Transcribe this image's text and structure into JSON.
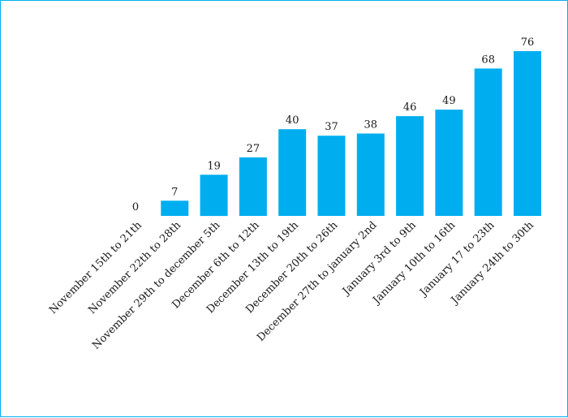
{
  "chart_data": {
    "type": "bar",
    "title": "",
    "xlabel": "",
    "ylabel": "",
    "categories": [
      "November 15th to 21th",
      "November 22th to 28th",
      "November 29th to december 5th",
      "December 6th to 12th",
      "December 13th to 19th",
      "December 20th to 26th",
      "December 27th to january 2nd",
      "January 3rd to 9th",
      "January 10th to 16th",
      "January 17 to 23th",
      "January 24th to 30th"
    ],
    "values": [
      0,
      7,
      19,
      27,
      40,
      37,
      38,
      46,
      49,
      68,
      76
    ],
    "ylim": [
      0,
      76
    ],
    "grid": false,
    "legend": "none",
    "bar_color": "#00aeef",
    "text_color": "#1a1a1a",
    "data_labels": true
  }
}
